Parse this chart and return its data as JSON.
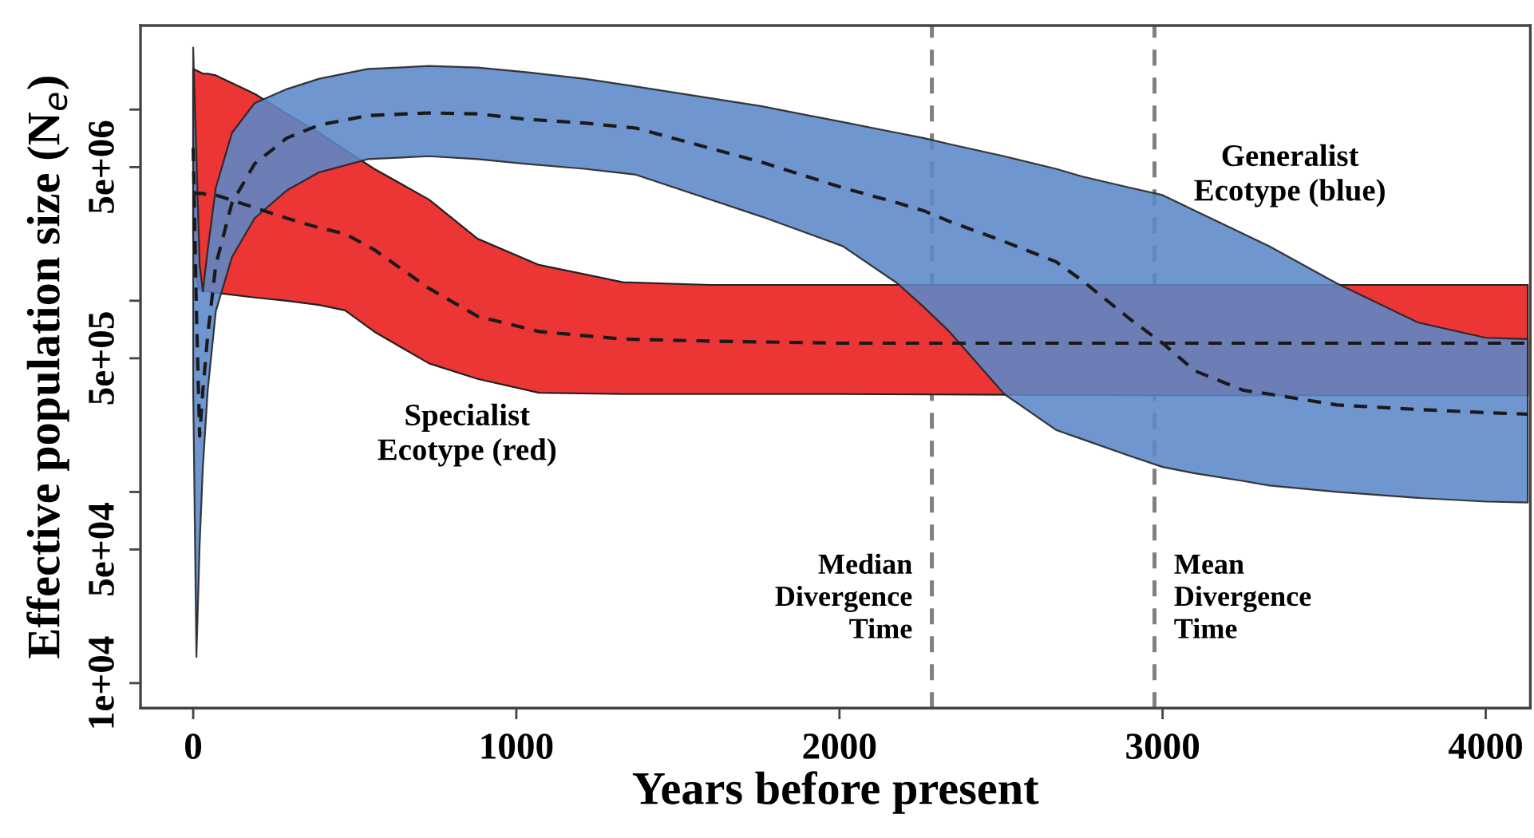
{
  "chart_data": {
    "type": "line",
    "xlabel": "Years before present",
    "ylabel": "Effective population size (N$_{e}$)",
    "log": "y",
    "xlim": [
      -163,
      4138
    ],
    "ylim": [
      7400,
      27500000
    ],
    "xticks": [
      0,
      1000,
      2000,
      3000,
      4000
    ],
    "yticks": [
      {
        "value": 10000,
        "label": "1e+04"
      },
      {
        "value": 50000,
        "label": "5e+04"
      },
      {
        "value": 100000,
        "label": null
      },
      {
        "value": 500000,
        "label": "5e+05"
      },
      {
        "value": 1000000,
        "label": null
      },
      {
        "value": 5000000,
        "label": "5e+06"
      },
      {
        "value": 10000000,
        "label": null
      }
    ],
    "grid": false,
    "legend": false,
    "marker": "none",
    "line_style": "dashed",
    "series": [
      {
        "color": "#1a1a1a",
        "x": [
          0,
          10,
          20,
          30,
          45,
          70,
          190,
          290,
          390,
          470,
          560,
          730,
          880,
          1070,
          1330,
          1600,
          2000,
          3000,
          4130
        ],
        "values": [
          3700000,
          3640000,
          3640000,
          3640000,
          3570000,
          3570000,
          3070000,
          2700000,
          2410000,
          2240000,
          1850000,
          1160000,
          830000,
          690000,
          630000,
          615000,
          600000,
          600000,
          600000
        ],
        "upper": [
          16300000,
          16000000,
          15700000,
          15400000,
          15400000,
          15100000,
          12100000,
          9500000,
          7550000,
          6150000,
          4900000,
          3380000,
          2110000,
          1540000,
          1250000,
          1210000,
          1210000,
          1210000,
          1210000
        ],
        "lower": [
          2240000,
          1280000,
          1140000,
          1120000,
          1120000,
          1100000,
          1040000,
          1000000,
          950000,
          890000,
          690000,
          470000,
          390000,
          330000,
          325000,
          325000,
          325000,
          320000,
          320000
        ]
      },
      {
        "color": "#1a1a1a",
        "x": [
          0,
          10,
          20,
          30,
          45,
          70,
          120,
          190,
          290,
          390,
          540,
          730,
          880,
          1030,
          1210,
          1370,
          1760,
          2010,
          2180,
          2260,
          2340,
          2510,
          2670,
          2750,
          2900,
          3000,
          3100,
          3250,
          3330,
          3540,
          3790,
          4000,
          4130
        ],
        "values": [
          6300000,
          880000,
          196000,
          340000,
          660000,
          1540000,
          3250000,
          5200000,
          7100000,
          8300000,
          9300000,
          9600000,
          9500000,
          8900000,
          8500000,
          8000000,
          5300000,
          3900000,
          3250000,
          2960000,
          2600000,
          2040000,
          1600000,
          1280000,
          800000,
          600000,
          430000,
          340000,
          325000,
          285000,
          270000,
          260000,
          255000
        ],
        "upper": [
          21100000,
          5700000,
          1540000,
          1120000,
          1850000,
          3900000,
          7550000,
          10800000,
          12800000,
          14500000,
          16300000,
          16900000,
          16600000,
          15700000,
          14500000,
          13200000,
          10400000,
          8600000,
          7550000,
          7100000,
          6600000,
          5700000,
          4900000,
          4470000,
          3900000,
          3570000,
          2960000,
          2240000,
          1930000,
          1230000,
          770000,
          640000,
          630000
        ],
        "lower": [
          340000,
          13700,
          53000,
          135000,
          340000,
          880000,
          1690000,
          2700000,
          3780000,
          4700000,
          5500000,
          5700000,
          5500000,
          5200000,
          4900000,
          4560000,
          2750000,
          1930000,
          1230000,
          930000,
          690000,
          325000,
          211000,
          189000,
          154000,
          135000,
          125000,
          114000,
          108000,
          100000,
          93000,
          89000,
          88000
        ]
      }
    ],
    "ref_lines": [
      {
        "axis": "x",
        "value": 2286,
        "label": "Median\nDivergence\nTime",
        "color": "#808080",
        "line_style": "dashed"
      },
      {
        "axis": "x",
        "value": 2975,
        "label": "Mean\nDivergence\nTime",
        "color": "#808080",
        "line_style": "dashed"
      }
    ],
    "annotations": [
      "Specialist\nEcotype (red)",
      "Generalist\nEcotype (blue)"
    ]
  }
}
